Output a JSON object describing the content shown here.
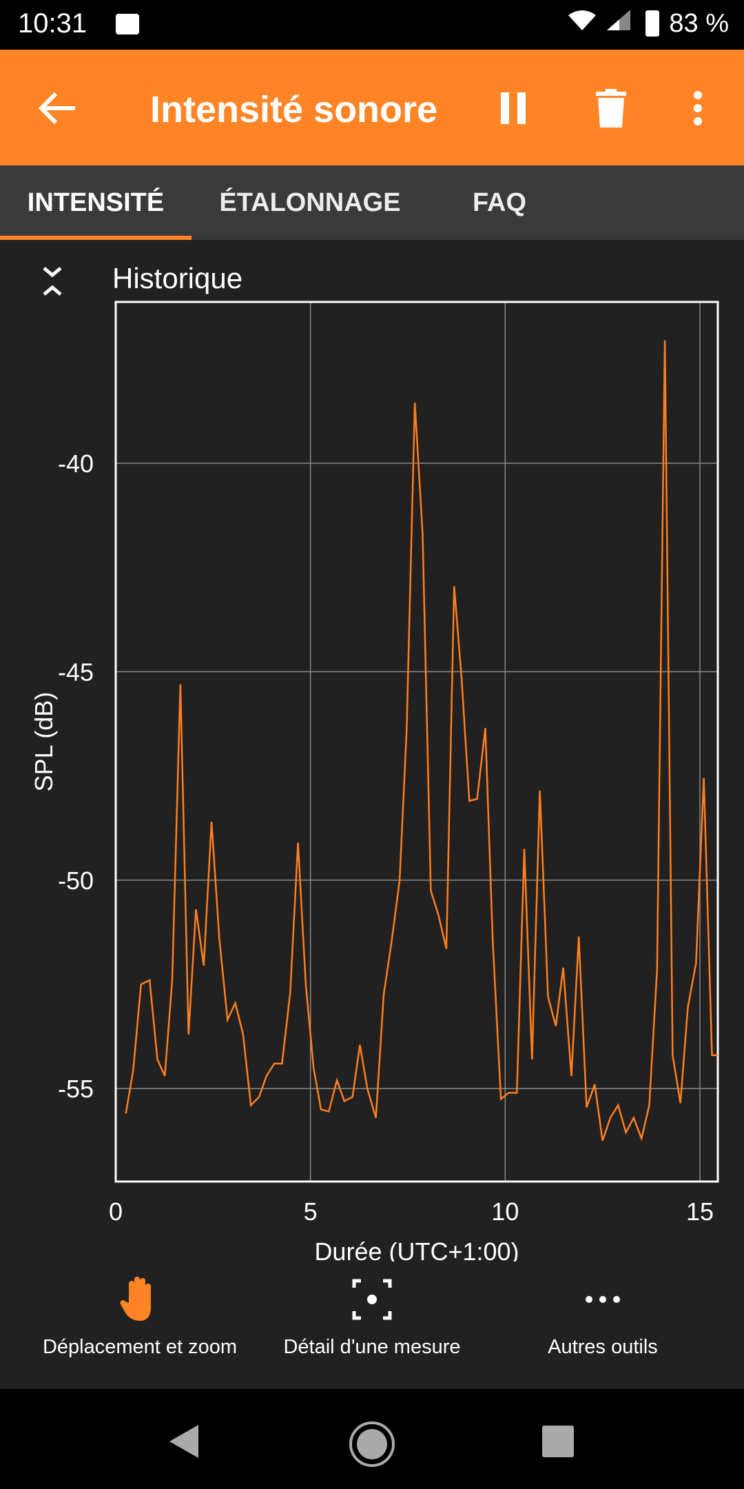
{
  "status_bar": {
    "time": "10:31",
    "battery": "83 %"
  },
  "app_bar": {
    "title": "Intensité sonore",
    "icons": [
      "back-arrow-icon",
      "pause-icon",
      "trash-icon",
      "more-vert-icon"
    ],
    "color": "#FF8426"
  },
  "tabs": [
    {
      "label": "INTENSITÉ",
      "active": true
    },
    {
      "label": "ÉTALONNAGE",
      "active": false
    },
    {
      "label": "FAQ",
      "active": false
    }
  ],
  "section": {
    "title": "Historique"
  },
  "toolbar": [
    {
      "label": "Déplacement et zoom",
      "icon": "hand-icon"
    },
    {
      "label": "Détail d'une mesure",
      "icon": "focus-point-icon"
    },
    {
      "label": "Autres outils",
      "icon": "more-horiz-icon"
    }
  ],
  "chart_data": {
    "type": "line",
    "xlabel": "Durée (UTC+1:00)",
    "ylabel": "SPL (dB)",
    "xlim": [
      0,
      15.46
    ],
    "ylim": [
      -57.23,
      -36.13
    ],
    "xticks": [
      0,
      5,
      10,
      15
    ],
    "xtick_labels": [
      "0",
      "5",
      "10",
      "15"
    ],
    "yticks": [
      -40,
      -45,
      -50,
      -55
    ],
    "ytick_labels": [
      "-40",
      "-45",
      "-50",
      "-55"
    ],
    "grid": true,
    "line_color": "#FF7F1E",
    "x": [
      0.26,
      0.45,
      0.65,
      0.87,
      1.07,
      1.26,
      1.45,
      1.66,
      1.87,
      2.06,
      2.26,
      2.46,
      2.66,
      2.87,
      3.07,
      3.27,
      3.47,
      3.68,
      3.87,
      4.07,
      4.27,
      4.48,
      4.68,
      4.88,
      5.08,
      5.27,
      5.47,
      5.68,
      5.87,
      6.08,
      6.27,
      6.46,
      6.68,
      6.88,
      7.08,
      7.29,
      7.47,
      7.68,
      7.88,
      8.09,
      8.29,
      8.49,
      8.69,
      8.88,
      9.08,
      9.28,
      9.49,
      9.68,
      9.89,
      10.09,
      10.3,
      10.49,
      10.69,
      10.89,
      11.1,
      11.3,
      11.49,
      11.7,
      11.89,
      12.09,
      12.3,
      12.5,
      12.7,
      12.9,
      13.1,
      13.3,
      13.5,
      13.7,
      13.9,
      14.1,
      14.3,
      14.5,
      14.69,
      14.9,
      15.1,
      15.31,
      15.46
    ],
    "y": [
      -55.6,
      -54.55,
      -52.5,
      -52.4,
      -54.3,
      -54.7,
      -52.4,
      -45.3,
      -53.7,
      -50.7,
      -52.05,
      -48.6,
      -51.4,
      -53.35,
      -52.95,
      -53.7,
      -55.4,
      -55.2,
      -54.7,
      -54.4,
      -54.4,
      -52.7,
      -49.1,
      -52.5,
      -54.5,
      -55.5,
      -55.55,
      -54.8,
      -55.3,
      -55.2,
      -53.95,
      -55.0,
      -55.7,
      -52.75,
      -51.5,
      -50.0,
      -46.4,
      -38.55,
      -41.7,
      -50.25,
      -50.85,
      -51.65,
      -42.95,
      -45.15,
      -48.1,
      -48.05,
      -46.35,
      -51.45,
      -55.25,
      -55.1,
      -55.1,
      -49.25,
      -54.3,
      -47.85,
      -52.8,
      -53.5,
      -52.1,
      -54.7,
      -51.35,
      -55.45,
      -54.9,
      -56.25,
      -55.7,
      -55.4,
      -56.05,
      -55.7,
      -56.2,
      -55.4,
      -52.15,
      -37.05,
      -54.2,
      -55.35,
      -53.05,
      -52.0,
      -47.55,
      -54.2,
      -54.2
    ]
  }
}
